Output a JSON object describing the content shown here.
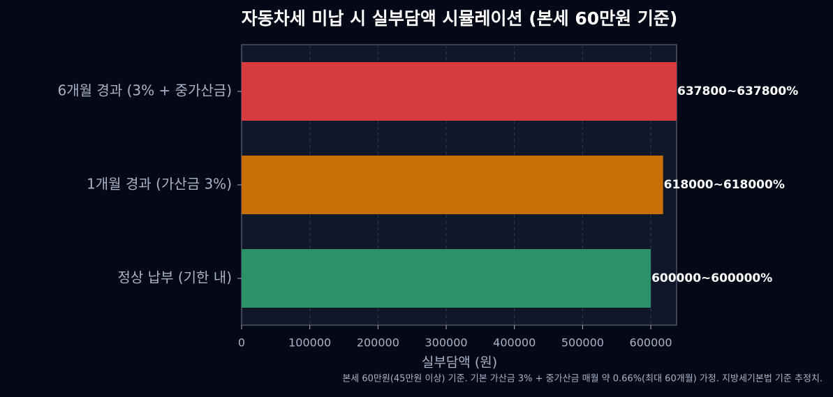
{
  "chart_data": {
    "type": "barh",
    "title": "자동차세 미납 시 실부담액 시뮬레이션 (본세 60만원 기준)",
    "categories": [
      "6개월 경과 (3% + 중가산금)",
      "1개월 경과 (가산금 3%)",
      "정상 납부 (기한 내)"
    ],
    "values": [
      637800,
      618000,
      600000
    ],
    "value_labels": [
      "637800~637800%",
      "618000~618000%",
      "600000~600000%"
    ],
    "colors": [
      "#d63b3f",
      "#c96f08",
      "#2a9168"
    ],
    "xlim": [
      0,
      637800
    ],
    "xticks": [
      0,
      100000,
      200000,
      300000,
      400000,
      500000,
      600000
    ],
    "xlabel": "실부담액 (원)",
    "grid": true,
    "footnote": "본세 60만원(45만원 이상) 기준. 기본 가산금 3% + 중가산금 매월 약 0.66%(최대 60개월) 가정. 지방세기본법 기준 추정치."
  }
}
